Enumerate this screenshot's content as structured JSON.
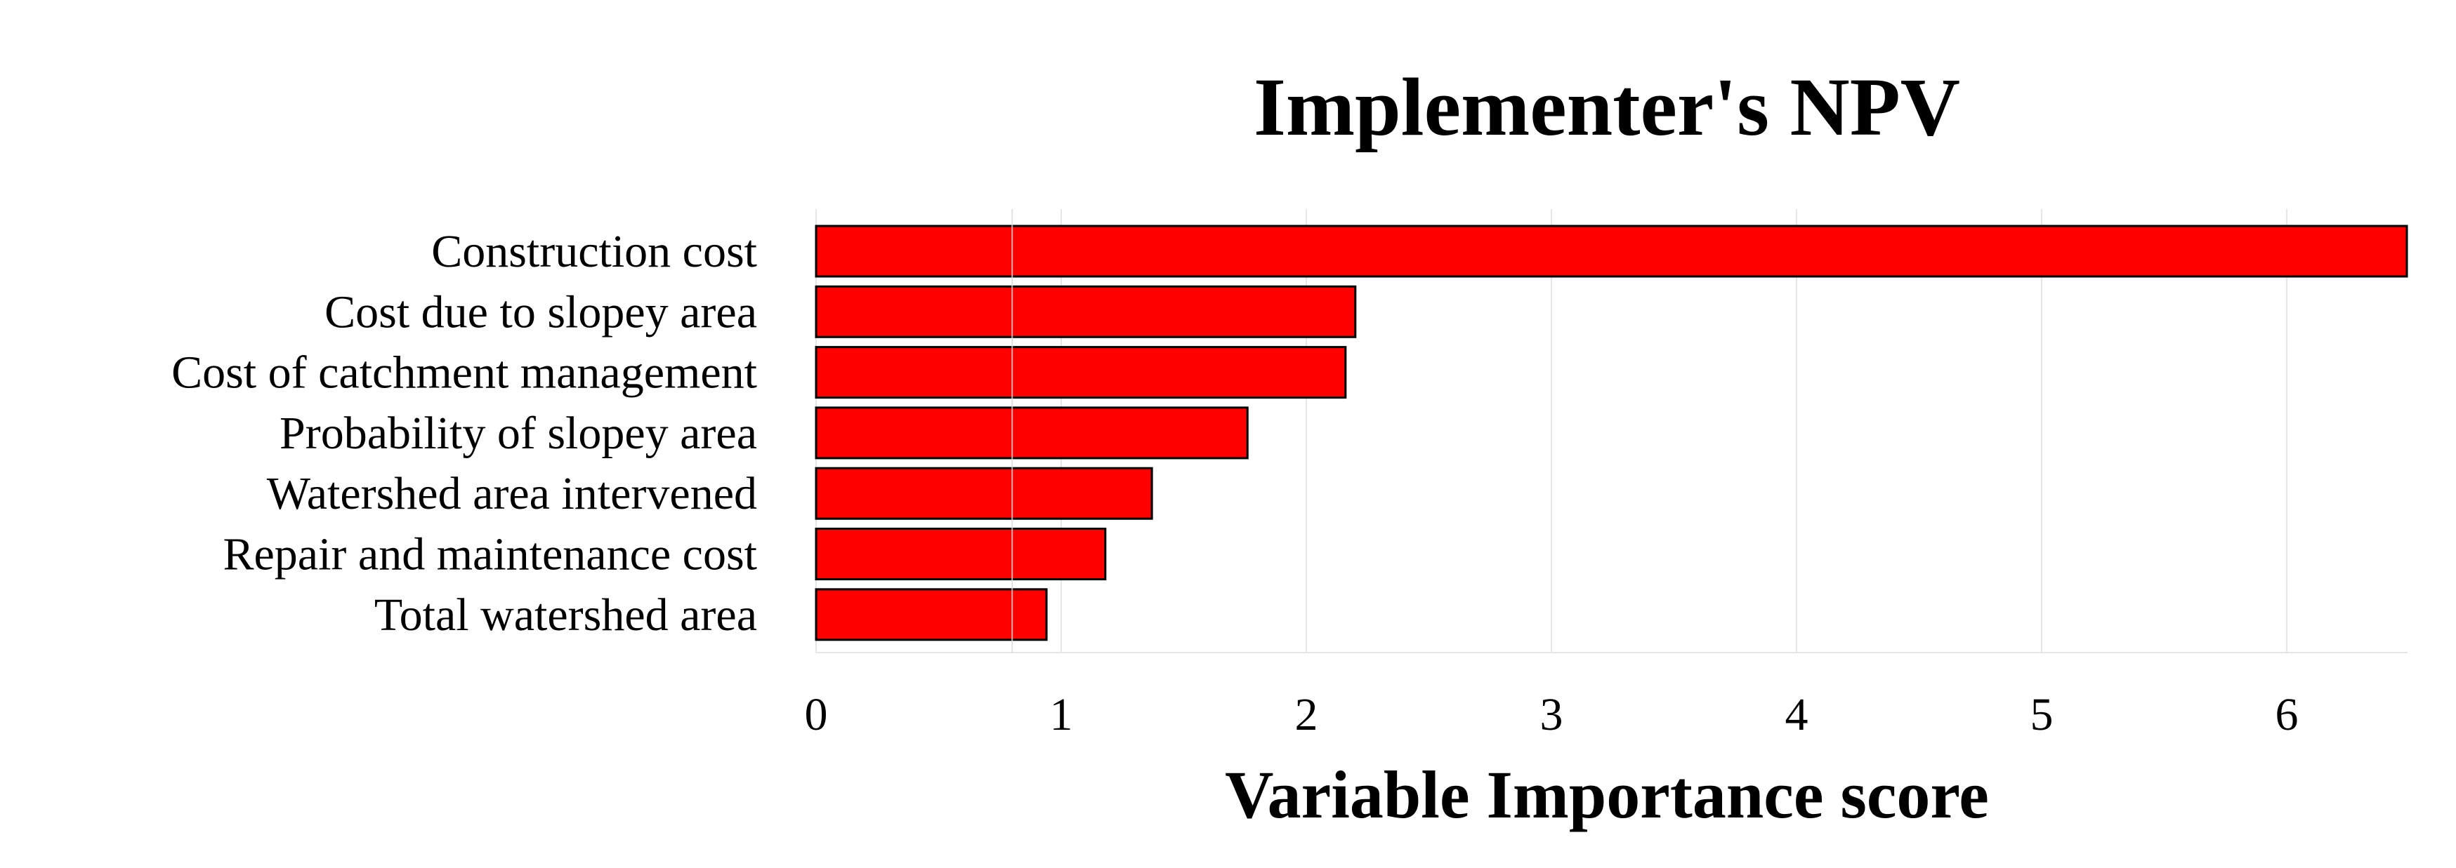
{
  "chart_data": {
    "type": "bar",
    "orientation": "horizontal",
    "title": "Implementer's NPV",
    "xlabel": "Variable Importance score",
    "ylabel": "",
    "categories": [
      "Construction cost",
      "Cost due to slopey area",
      "Cost of catchment management",
      "Probability of slopey area",
      "Watershed area intervened",
      "Repair and maintenance cost",
      "Total watershed area"
    ],
    "values": [
      6.49,
      2.2,
      2.16,
      1.76,
      1.37,
      1.18,
      0.94
    ],
    "xlim": [
      0,
      6.5
    ],
    "xticks": [
      "0",
      "1",
      "2",
      "3",
      "4",
      "5",
      "6"
    ],
    "reference_line_x": 0.8,
    "grid": true,
    "legend": "none",
    "bar_color": "#FF0000",
    "bar_edge_color": "#000000"
  }
}
